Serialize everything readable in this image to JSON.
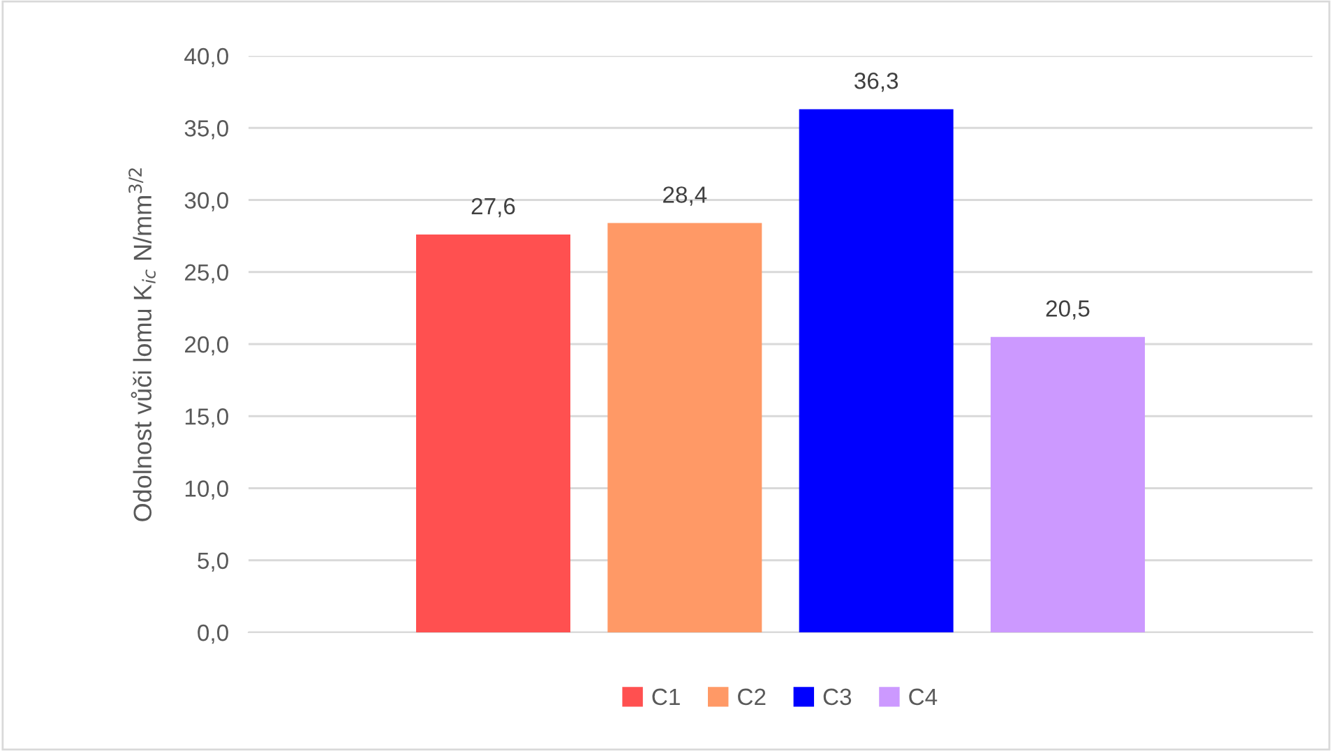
{
  "chart_data": {
    "type": "bar",
    "ylabel": "Odolnost vůči lomu K$_{ic}$ N/mm$^{3/2}$",
    "categories": [
      null
    ],
    "series": [
      {
        "name": "C1",
        "color": "#ff5050",
        "values": [
          27.6
        ],
        "value_labels": [
          "27,6"
        ]
      },
      {
        "name": "C2",
        "color": "#ff9966",
        "values": [
          28.4
        ],
        "value_labels": [
          "28,4"
        ]
      },
      {
        "name": "C3",
        "color": "#0000ff",
        "values": [
          36.3
        ],
        "value_labels": [
          "36,3"
        ]
      },
      {
        "name": "C4",
        "color": "#cc99ff",
        "values": [
          20.5
        ],
        "value_labels": [
          "20,5"
        ]
      }
    ],
    "ylim": [
      0,
      40
    ],
    "yticks": [
      {
        "value": 0,
        "label": "0,0"
      },
      {
        "value": 5,
        "label": "5,0"
      },
      {
        "value": 10,
        "label": "10,0"
      },
      {
        "value": 15,
        "label": "15,0"
      },
      {
        "value": 20,
        "label": "20,0"
      },
      {
        "value": 25,
        "label": "25,0"
      },
      {
        "value": 30,
        "label": "30,0"
      },
      {
        "value": 35,
        "label": "35,0"
      },
      {
        "value": 40,
        "label": "40,0"
      }
    ],
    "grid": "y",
    "legend": "bottom"
  }
}
